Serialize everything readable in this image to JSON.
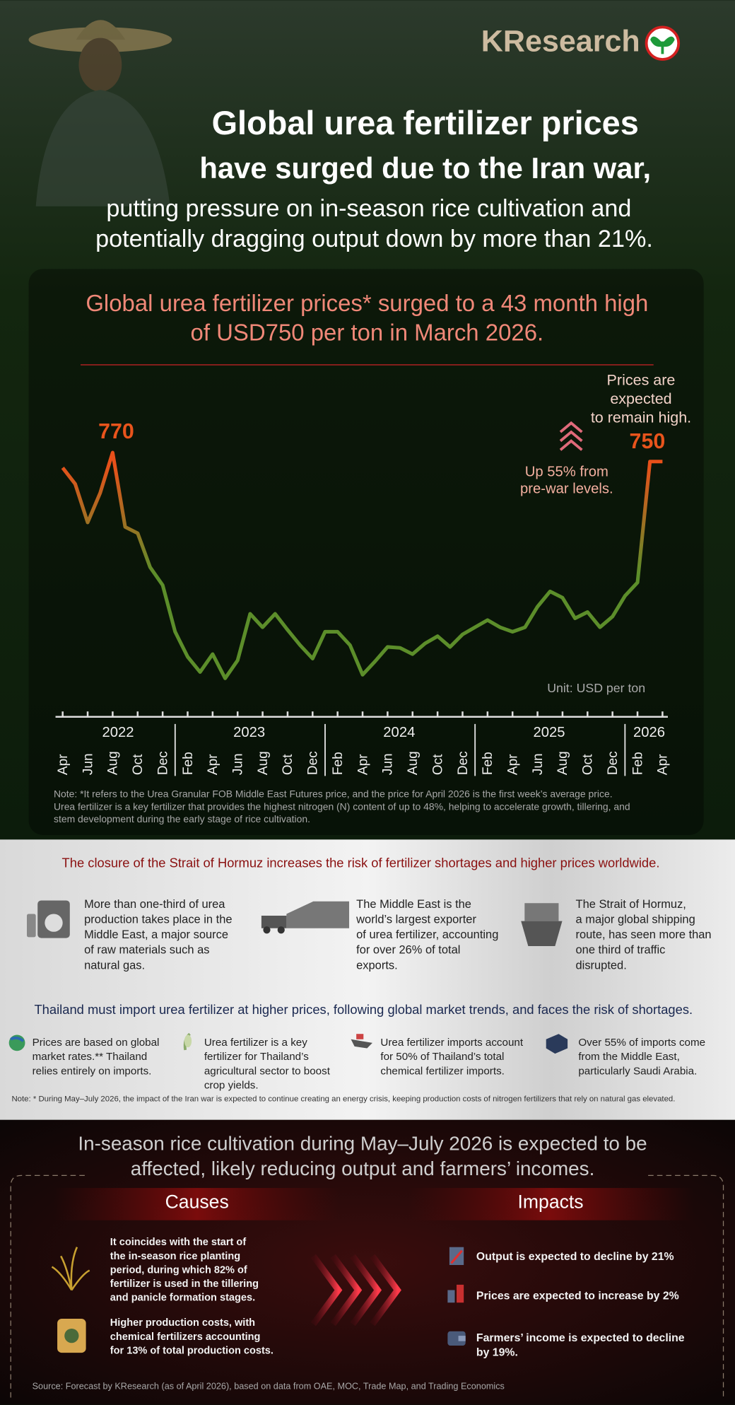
{
  "header": {
    "brand": "KResearch",
    "title_lines": [
      "Global urea fertilizer prices",
      "have surged due to the Iran war,",
      "putting pressure on in-season rice cultivation  and",
      "potentially dragging output down by more than 21%."
    ]
  },
  "chart_data": {
    "type": "line",
    "title_lines": [
      "Global urea fertilizer prices* surged to a 43 month high",
      "of USD750 per ton in March 2026."
    ],
    "categories": [
      "Apr",
      null,
      "Jun",
      null,
      "Aug",
      null,
      "Oct",
      null,
      "Dec",
      null,
      "Feb",
      null,
      "Apr",
      null,
      "Jun",
      null,
      "Aug",
      null,
      "Oct",
      null,
      "Dec",
      null,
      "Feb",
      null,
      "Apr",
      null,
      "Jun",
      null,
      "Aug",
      null,
      "Oct",
      null,
      "Dec",
      null,
      "Feb",
      null,
      "Apr",
      null,
      "Jun",
      null,
      "Aug",
      null,
      "Oct",
      null,
      "Dec",
      null,
      "Feb",
      null,
      "Apr"
    ],
    "years": [
      "2022",
      "2023",
      "2024",
      "2025",
      "2026"
    ],
    "values": [
      736,
      700,
      614,
      680,
      770,
      604,
      590,
      514,
      474,
      370,
      314,
      280,
      320,
      266,
      306,
      410,
      380,
      410,
      374,
      340,
      310,
      370,
      370,
      340,
      274,
      304,
      336,
      334,
      320,
      344,
      360,
      336,
      364,
      380,
      396,
      380,
      370,
      380,
      426,
      460,
      446,
      400,
      414,
      380,
      404,
      450,
      480,
      750,
      750
    ],
    "color_high": "#e8501a",
    "color_low": "#5c8e2a",
    "ylim": [
      250,
      800
    ],
    "unit": "Unit:  USD per ton",
    "outlook_lines": [
      "Prices are",
      "expected",
      "to remain high."
    ],
    "change_lines": [
      "Up 55% from",
      "pre-war levels."
    ],
    "note_lines": [
      "Note: *It refers to the Urea Granular FOB Middle East Futures price, and the price for April 2026 is the first week’s average price.",
      "Urea fertilizer is a key fertilizer that provides the highest nitrogen (N) content of up to 48%, helping to accelerate growth, tillering, and",
      "stem development during the early stage of rice cultivation."
    ]
  },
  "hormuz": {
    "heading": "The closure of the Strait of Hormuz increases the risk of fertilizer shortages and higher prices worldwide.",
    "items": [
      [
        "More than one-third of urea",
        "production takes place in the",
        "Middle East, a major source",
        "of raw materials such as",
        "natural gas."
      ],
      [
        "The Middle East is the",
        "world’s largest exporter",
        "of urea fertilizer, accounting",
        "for over 26% of total",
        "exports."
      ],
      [
        "The Strait of Hormuz,",
        "a major global shipping",
        "route, has seen more than",
        "one third of traffic",
        "disrupted."
      ]
    ]
  },
  "thailand": {
    "heading": "Thailand must import urea fertilizer at higher prices, following global market trends, and faces the risk of shortages.",
    "items": [
      [
        "Prices are based on global",
        "market rates.** Thailand",
        "relies entirely on imports."
      ],
      [
        "Urea fertilizer is a key",
        "fertilizer for Thailand’s",
        "agricultural sector to boost",
        "crop yields."
      ],
      [
        "Urea fertilizer imports account",
        "for 50% of Thailand’s total",
        "chemical fertilizer imports."
      ],
      [
        "Over 55% of imports come",
        "from the Middle East,",
        "particularly Saudi Arabia."
      ]
    ],
    "note": "Note: * During May–July 2026, the impact of the Iran war is expected to continue creating an energy crisis, keeping production costs of nitrogen fertilizers that rely on natural gas elevated."
  },
  "rice": {
    "heading_lines": [
      "In-season rice cultivation during May–July 2026 is expected to be",
      "affected, likely reducing output and farmers’ incomes."
    ],
    "causes_title": "Causes",
    "impacts_title": "Impacts",
    "causes": [
      [
        "It coincides with the start of",
        "the in-season rice planting",
        "period, during which 82% of",
        "fertilizer is used in the tillering",
        "and panicle formation stages."
      ],
      [
        "Higher production costs, with",
        "chemical fertilizers accounting",
        "for 13% of total production costs."
      ]
    ],
    "impacts": [
      [
        "Output is expected to decline by 21%"
      ],
      [
        "Prices are expected to increase by 2%"
      ],
      [
        "Farmers’ income is expected to decline",
        "by 19%."
      ]
    ],
    "source": "Source: Forecast by KResearch (as of April 2026), based on data from OAE, MOC, Trade Map, and Trading Economics"
  }
}
